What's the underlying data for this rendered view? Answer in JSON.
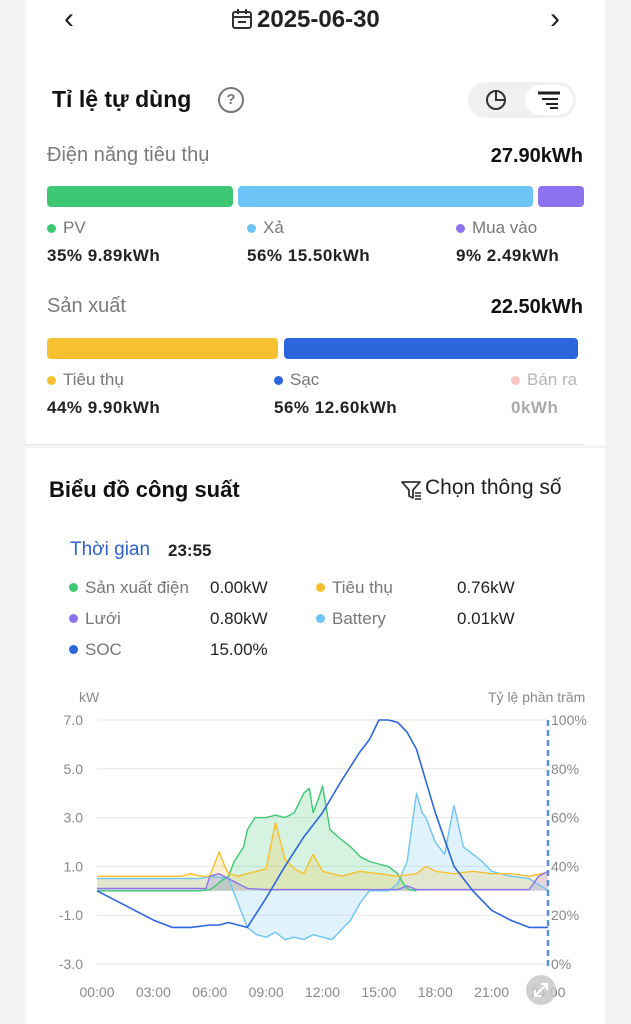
{
  "header": {
    "date": "2025-06-30"
  },
  "self_use": {
    "title": "Tỉ lệ tự dùng",
    "consumption": {
      "label": "Điện năng tiêu thụ",
      "total": "27.90kWh",
      "items": [
        {
          "name": "PV",
          "value": "35% 9.89kWh",
          "color": "#3ec873"
        },
        {
          "name": "Xả",
          "value": "56% 15.50kWh",
          "color": "#6cc4f7"
        },
        {
          "name": "Mua vào",
          "value": "9% 2.49kWh",
          "color": "#8b73f0"
        }
      ]
    },
    "production": {
      "label": "Sản xuất",
      "total": "22.50kWh",
      "items": [
        {
          "name": "Tiêu thụ",
          "value": "44% 9.90kWh",
          "color": "#f6c030"
        },
        {
          "name": "Sạc",
          "value": "56% 12.60kWh",
          "color": "#2c66dc"
        },
        {
          "name": "Bán ra",
          "value": "0kWh",
          "color": "#f7c4c4"
        }
      ]
    }
  },
  "power_chart": {
    "title": "Biểu đồ công suất",
    "choose_label": "Chọn thông số",
    "time_label": "Thời gian",
    "time_value": "23:55",
    "readings": [
      {
        "name": "Sản xuất điện",
        "value": "0.00kW",
        "color": "#3ec873"
      },
      {
        "name": "Tiêu thụ",
        "value": "0.76kW",
        "color": "#f6c030"
      },
      {
        "name": "Lưới",
        "value": "0.80kW",
        "color": "#8b73f0"
      },
      {
        "name": "Battery",
        "value": "0.01kW",
        "color": "#6cc4f7"
      },
      {
        "name": "SOC",
        "value": "15.00%",
        "color": "#2c66dc"
      }
    ]
  },
  "chart_data": {
    "type": "line",
    "ylabel": "kW",
    "y2label": "Tỷ lệ phần trăm",
    "ylim": [
      -3,
      7
    ],
    "y2lim": [
      0,
      100
    ],
    "yticks": [
      "7.0",
      "5.0",
      "3.0",
      "1.0",
      "-1.0",
      "-3.0"
    ],
    "y2ticks": [
      "100%",
      "80%",
      "60%",
      "40%",
      "20%",
      "0%"
    ],
    "xticks": [
      "00:00",
      "03:00",
      "06:00",
      "09:00",
      "12:00",
      "15:00",
      "18:00",
      "21:00",
      "24:00"
    ],
    "grid": true,
    "series": [
      {
        "name": "Sản xuất điện",
        "axis": "left",
        "color": "#3ec873",
        "x": [
          0,
          5.5,
          6,
          6.3,
          6.6,
          7,
          7.3,
          7.8,
          8,
          8.4,
          9,
          9.5,
          10,
          10.5,
          11,
          11.3,
          11.5,
          11.8,
          12,
          12.4,
          13,
          13.5,
          14,
          14.5,
          15,
          15.5,
          16,
          16.3,
          16.6,
          17
        ],
        "y": [
          0,
          0,
          0.05,
          0.2,
          0.4,
          0.6,
          1.2,
          1.8,
          2.5,
          3.0,
          3.0,
          3.1,
          3.0,
          3.2,
          4.0,
          4.2,
          3.2,
          3.8,
          4.3,
          2.5,
          2.1,
          1.8,
          1.4,
          1.2,
          1.1,
          1.0,
          0.7,
          0.3,
          0.05,
          0
        ]
      },
      {
        "name": "Tiêu thụ",
        "axis": "left",
        "color": "#f6c030",
        "x": [
          0,
          3,
          4.5,
          5,
          5.5,
          6,
          6.3,
          6.5,
          6.8,
          7,
          7.5,
          8,
          8.5,
          9,
          9.5,
          10,
          10.5,
          11,
          11.5,
          12,
          12.5,
          13,
          14,
          15,
          16,
          17,
          17.5,
          18,
          19,
          20,
          21,
          22,
          23,
          24
        ],
        "y": [
          0.6,
          0.6,
          0.6,
          0.7,
          0.6,
          0.6,
          1.2,
          1.6,
          1.0,
          0.7,
          0.6,
          0.7,
          0.8,
          0.9,
          2.8,
          1.3,
          0.9,
          0.7,
          1.5,
          0.8,
          0.7,
          0.6,
          0.8,
          0.7,
          0.6,
          0.7,
          1.0,
          0.8,
          0.7,
          0.8,
          0.7,
          0.7,
          0.6,
          0.76
        ]
      },
      {
        "name": "Lưới",
        "axis": "left",
        "color": "#8b73f0",
        "x": [
          0,
          5.8,
          6,
          6.5,
          7,
          7.5,
          8,
          9,
          10,
          11,
          12,
          13,
          14,
          15,
          16,
          16.5,
          17,
          20,
          22,
          23,
          23.5,
          24
        ],
        "y": [
          0.1,
          0.1,
          0.6,
          0.7,
          0.5,
          0.3,
          0.1,
          0.05,
          0.05,
          0.05,
          0.05,
          0.05,
          0.05,
          0.05,
          0.05,
          0.2,
          0.05,
          0.05,
          0.05,
          0.05,
          0.6,
          0.8
        ]
      },
      {
        "name": "Battery",
        "axis": "left",
        "color": "#6cc4f7",
        "x": [
          0,
          5.5,
          6,
          7,
          7.5,
          8,
          8.5,
          9,
          9.5,
          10,
          10.5,
          11,
          11.5,
          12,
          12.5,
          13,
          13.5,
          14,
          14.5,
          15,
          15.5,
          16,
          16.5,
          17,
          17.3,
          17.5,
          18,
          18.5,
          19,
          19.5,
          20,
          20.5,
          21,
          22,
          23,
          24
        ],
        "y": [
          0.5,
          0.5,
          0.6,
          0.5,
          -0.5,
          -1.5,
          -1.8,
          -1.9,
          -1.7,
          -2.0,
          -1.9,
          -2.0,
          -1.8,
          -1.9,
          -2.0,
          -1.6,
          -1.2,
          -0.5,
          0,
          0,
          0,
          0.3,
          1.2,
          4.0,
          3.2,
          3.0,
          2.0,
          1.5,
          3.5,
          1.8,
          1.5,
          1.2,
          0.8,
          0.6,
          0.5,
          0.01
        ]
      },
      {
        "name": "SOC",
        "axis": "right",
        "color": "#2c66dc",
        "x": [
          0,
          1,
          2,
          3,
          4,
          5,
          6,
          6.5,
          7,
          7.5,
          8,
          9,
          10,
          11,
          12,
          13,
          14,
          14.5,
          15,
          15.5,
          16,
          16.5,
          17,
          18,
          19,
          20,
          21,
          22,
          23,
          24
        ],
        "y": [
          30,
          26,
          22,
          18,
          15,
          15,
          16,
          16,
          17,
          16,
          15,
          27,
          40,
          52,
          62,
          75,
          87,
          92,
          100,
          100,
          99,
          95,
          88,
          62,
          40,
          30,
          22,
          18,
          15,
          15
        ]
      }
    ]
  }
}
